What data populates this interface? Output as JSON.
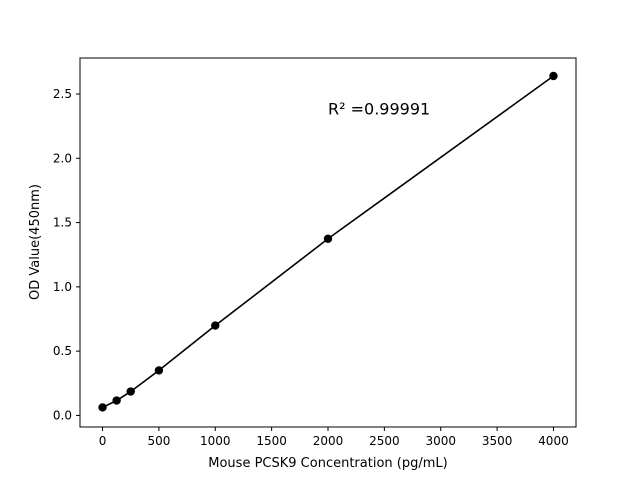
{
  "chart_data": {
    "type": "line",
    "title": "",
    "xlabel": "Mouse PCSK9 Concentration (pg/mL)",
    "ylabel": "OD Value(450nm)",
    "xlim": [
      -200,
      4200
    ],
    "ylim": [
      -0.09,
      2.78
    ],
    "xticks": [
      0,
      500,
      1000,
      1500,
      2000,
      2500,
      3000,
      3500,
      4000
    ],
    "yticks": [
      0.0,
      0.5,
      1.0,
      1.5,
      2.0,
      2.5
    ],
    "xtick_labels": [
      "0",
      "500",
      "1000",
      "1500",
      "2000",
      "2500",
      "3000",
      "3500",
      "4000"
    ],
    "ytick_labels": [
      "0.0",
      "0.5",
      "1.0",
      "1.5",
      "2.0",
      "2.5"
    ],
    "grid": false,
    "annotation": {
      "text": "R² =0.99991",
      "x": 2000,
      "y": 2.38
    },
    "series": [
      {
        "x": [
          0,
          125,
          250,
          500,
          1000,
          2000,
          4000
        ],
        "y": [
          0.062,
          0.116,
          0.186,
          0.35,
          0.699,
          1.374,
          2.64
        ],
        "color": "#000000",
        "marker": "circle"
      }
    ]
  }
}
